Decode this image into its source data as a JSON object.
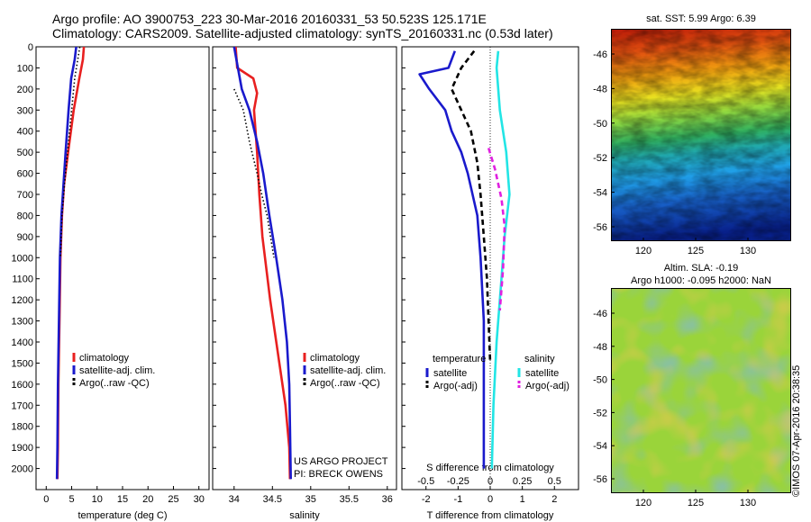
{
  "header": {
    "line1": "Argo profile: AO 3900753_223 30-Mar-2016 20160331_53 50.523S 125.171E",
    "line2": "Climatology: CARS2009. Satellite-adjusted climatology: synTS_20160331.nc (0.53d later)"
  },
  "depth_ticks": [
    "0",
    "100",
    "200",
    "300",
    "400",
    "500",
    "600",
    "700",
    "800",
    "900",
    "1000",
    "1100",
    "1200",
    "1300",
    "1400",
    "1500",
    "1600",
    "1700",
    "1800",
    "1900",
    "2000"
  ],
  "chart_data": [
    {
      "type": "line",
      "xlabel": "temperature (deg C)",
      "xticks": [
        "0",
        "5",
        "10",
        "15",
        "20",
        "25",
        "30"
      ],
      "xlim": [
        -2,
        32
      ],
      "ylim": [
        2100,
        0
      ],
      "legend": {
        "placement": "bottom-center",
        "entries": [
          "climatology",
          "satellite-adj. clim.",
          "Argo(..raw -QC)"
        ]
      },
      "series": [
        {
          "name": "climatology",
          "color": "#e82020",
          "dash": "solid",
          "points": [
            [
              7.4,
              0
            ],
            [
              7.2,
              60
            ],
            [
              6.5,
              150
            ],
            [
              5.4,
              300
            ],
            [
              4.3,
              500
            ],
            [
              3.5,
              650
            ],
            [
              3.1,
              800
            ],
            [
              2.8,
              1000
            ],
            [
              2.6,
              1300
            ],
            [
              2.4,
              1600
            ],
            [
              2.3,
              1900
            ],
            [
              2.2,
              2050
            ]
          ]
        },
        {
          "name": "satellite-adj. clim.",
          "color": "#1a1acc",
          "dash": "solid",
          "points": [
            [
              5.9,
              0
            ],
            [
              5.6,
              60
            ],
            [
              4.9,
              150
            ],
            [
              4.4,
              300
            ],
            [
              3.8,
              500
            ],
            [
              3.4,
              650
            ],
            [
              3.0,
              800
            ],
            [
              2.7,
              1000
            ],
            [
              2.5,
              1300
            ],
            [
              2.3,
              1600
            ],
            [
              2.2,
              1900
            ],
            [
              2.1,
              2050
            ]
          ]
        },
        {
          "name": "Argo(..raw -QC)",
          "color": "#000000",
          "dash": "dot",
          "points": [
            [
              6.6,
              0
            ],
            [
              6.2,
              60
            ],
            [
              5.6,
              150
            ],
            [
              5.0,
              300
            ],
            [
              4.2,
              500
            ],
            [
              3.6,
              650
            ],
            [
              3.1,
              800
            ],
            [
              2.8,
              1000
            ]
          ]
        }
      ]
    },
    {
      "type": "line",
      "xlabel": "salinity",
      "xticks": [
        "34",
        "34.5",
        "35",
        "35.5",
        "36"
      ],
      "xlim": [
        33.72,
        36.12
      ],
      "ylim": [
        2100,
        0
      ],
      "legend": {
        "placement": "bottom-center",
        "entries": [
          "climatology",
          "satellite-adj. clim.",
          "Argo(..raw -QC)"
        ]
      },
      "annotation": [
        "US ARGO PROJECT",
        "PI: BRECK OWENS"
      ],
      "series": [
        {
          "name": "climatology",
          "color": "#e82020",
          "dash": "solid",
          "points": [
            [
              34.02,
              0
            ],
            [
              34.04,
              100
            ],
            [
              34.25,
              150
            ],
            [
              34.3,
              220
            ],
            [
              34.26,
              300
            ],
            [
              34.3,
              500
            ],
            [
              34.33,
              700
            ],
            [
              34.37,
              900
            ],
            [
              34.47,
              1200
            ],
            [
              34.59,
              1500
            ],
            [
              34.67,
              1700
            ],
            [
              34.72,
              1900
            ],
            [
              34.73,
              2050
            ]
          ]
        },
        {
          "name": "satellite-adj. clim.",
          "color": "#1a1acc",
          "dash": "solid",
          "points": [
            [
              34.0,
              0
            ],
            [
              34.05,
              100
            ],
            [
              34.1,
              200
            ],
            [
              34.2,
              300
            ],
            [
              34.3,
              450
            ],
            [
              34.38,
              600
            ],
            [
              34.46,
              800
            ],
            [
              34.55,
              1000
            ],
            [
              34.63,
              1200
            ],
            [
              34.69,
              1400
            ],
            [
              34.72,
              1600
            ],
            [
              34.73,
              1800
            ],
            [
              34.74,
              2050
            ]
          ]
        },
        {
          "name": "Argo(..raw -QC)",
          "color": "#000000",
          "dash": "dot",
          "points": [
            [
              34.0,
              200
            ],
            [
              34.12,
              300
            ],
            [
              34.2,
              450
            ],
            [
              34.3,
              600
            ],
            [
              34.36,
              700
            ],
            [
              34.43,
              800
            ],
            [
              34.52,
              1000
            ]
          ]
        }
      ]
    },
    {
      "type": "line",
      "xlabel": "T difference from climatology",
      "xticks_T": [
        "-2",
        "-1",
        "0",
        "1",
        "2"
      ],
      "xticks_S": [
        "-0.5",
        "-0.25",
        "0",
        "0.25",
        "0.5"
      ],
      "s_label": "S difference from climatology",
      "xlim": [
        -2.75,
        2.75
      ],
      "ylim": [
        2100,
        0
      ],
      "legend": {
        "placement": "bottom-center",
        "temperature_title": "temperature",
        "temperature_entries": [
          "satellite",
          "Argo(-adj)"
        ],
        "salinity_title": "salinity",
        "salinity_entries": [
          "satellite",
          "Argo(-adj)"
        ]
      },
      "series": [
        {
          "name": "temperature satellite",
          "color": "#1a1acc",
          "dash": "solid",
          "points": [
            [
              -1.1,
              20
            ],
            [
              -1.3,
              100
            ],
            [
              -2.2,
              130
            ],
            [
              -1.9,
              200
            ],
            [
              -1.4,
              300
            ],
            [
              -1.2,
              400
            ],
            [
              -0.9,
              500
            ],
            [
              -0.7,
              600
            ],
            [
              -0.4,
              800
            ],
            [
              -0.3,
              1000
            ],
            [
              -0.2,
              1300
            ],
            [
              -0.2,
              1600
            ],
            [
              -0.2,
              2000
            ]
          ]
        },
        {
          "name": "temperature Argo(-adj)",
          "color": "#000000",
          "dash": "dash",
          "points": [
            [
              -0.5,
              20
            ],
            [
              -0.9,
              100
            ],
            [
              -1.2,
              200
            ],
            [
              -0.9,
              300
            ],
            [
              -0.6,
              400
            ],
            [
              -0.4,
              550
            ],
            [
              -0.3,
              700
            ],
            [
              -0.2,
              900
            ],
            [
              -0.1,
              1100
            ],
            [
              0.0,
              1500
            ]
          ]
        },
        {
          "name": "salinity satellite",
          "color": "#22e5e5",
          "dash": "solid",
          "points": [
            [
              0.25,
              20
            ],
            [
              0.2,
              100
            ],
            [
              0.3,
              300
            ],
            [
              0.5,
              500
            ],
            [
              0.6,
              700
            ],
            [
              0.45,
              900
            ],
            [
              0.35,
              1100
            ],
            [
              0.2,
              1400
            ],
            [
              0.1,
              1700
            ],
            [
              0.05,
              2000
            ]
          ]
        },
        {
          "name": "salinity Argo(-adj)",
          "color": "#e020e0",
          "dash": "dash",
          "points": [
            [
              -0.05,
              480
            ],
            [
              0.15,
              580
            ],
            [
              0.35,
              720
            ],
            [
              0.45,
              850
            ],
            [
              0.4,
              1050
            ],
            [
              0.3,
              1250
            ]
          ]
        }
      ]
    }
  ],
  "maps": {
    "sst": {
      "title": "sat. SST: 5.99 Argo: 6.39",
      "yticks": [
        "-46",
        "-48",
        "-50",
        "-52",
        "-54",
        "-56"
      ],
      "xticks": [
        "120",
        "125",
        "130"
      ]
    },
    "sla": {
      "title1": "Altim. SLA: -0.19",
      "title2": "Argo h1000: -0.095 h2000: NaN",
      "yticks": [
        "-46",
        "-48",
        "-50",
        "-52",
        "-54",
        "-56"
      ],
      "xticks": [
        "120",
        "125",
        "130"
      ]
    }
  },
  "credit": "©IMOS 07-Apr-2016 20:38:35"
}
